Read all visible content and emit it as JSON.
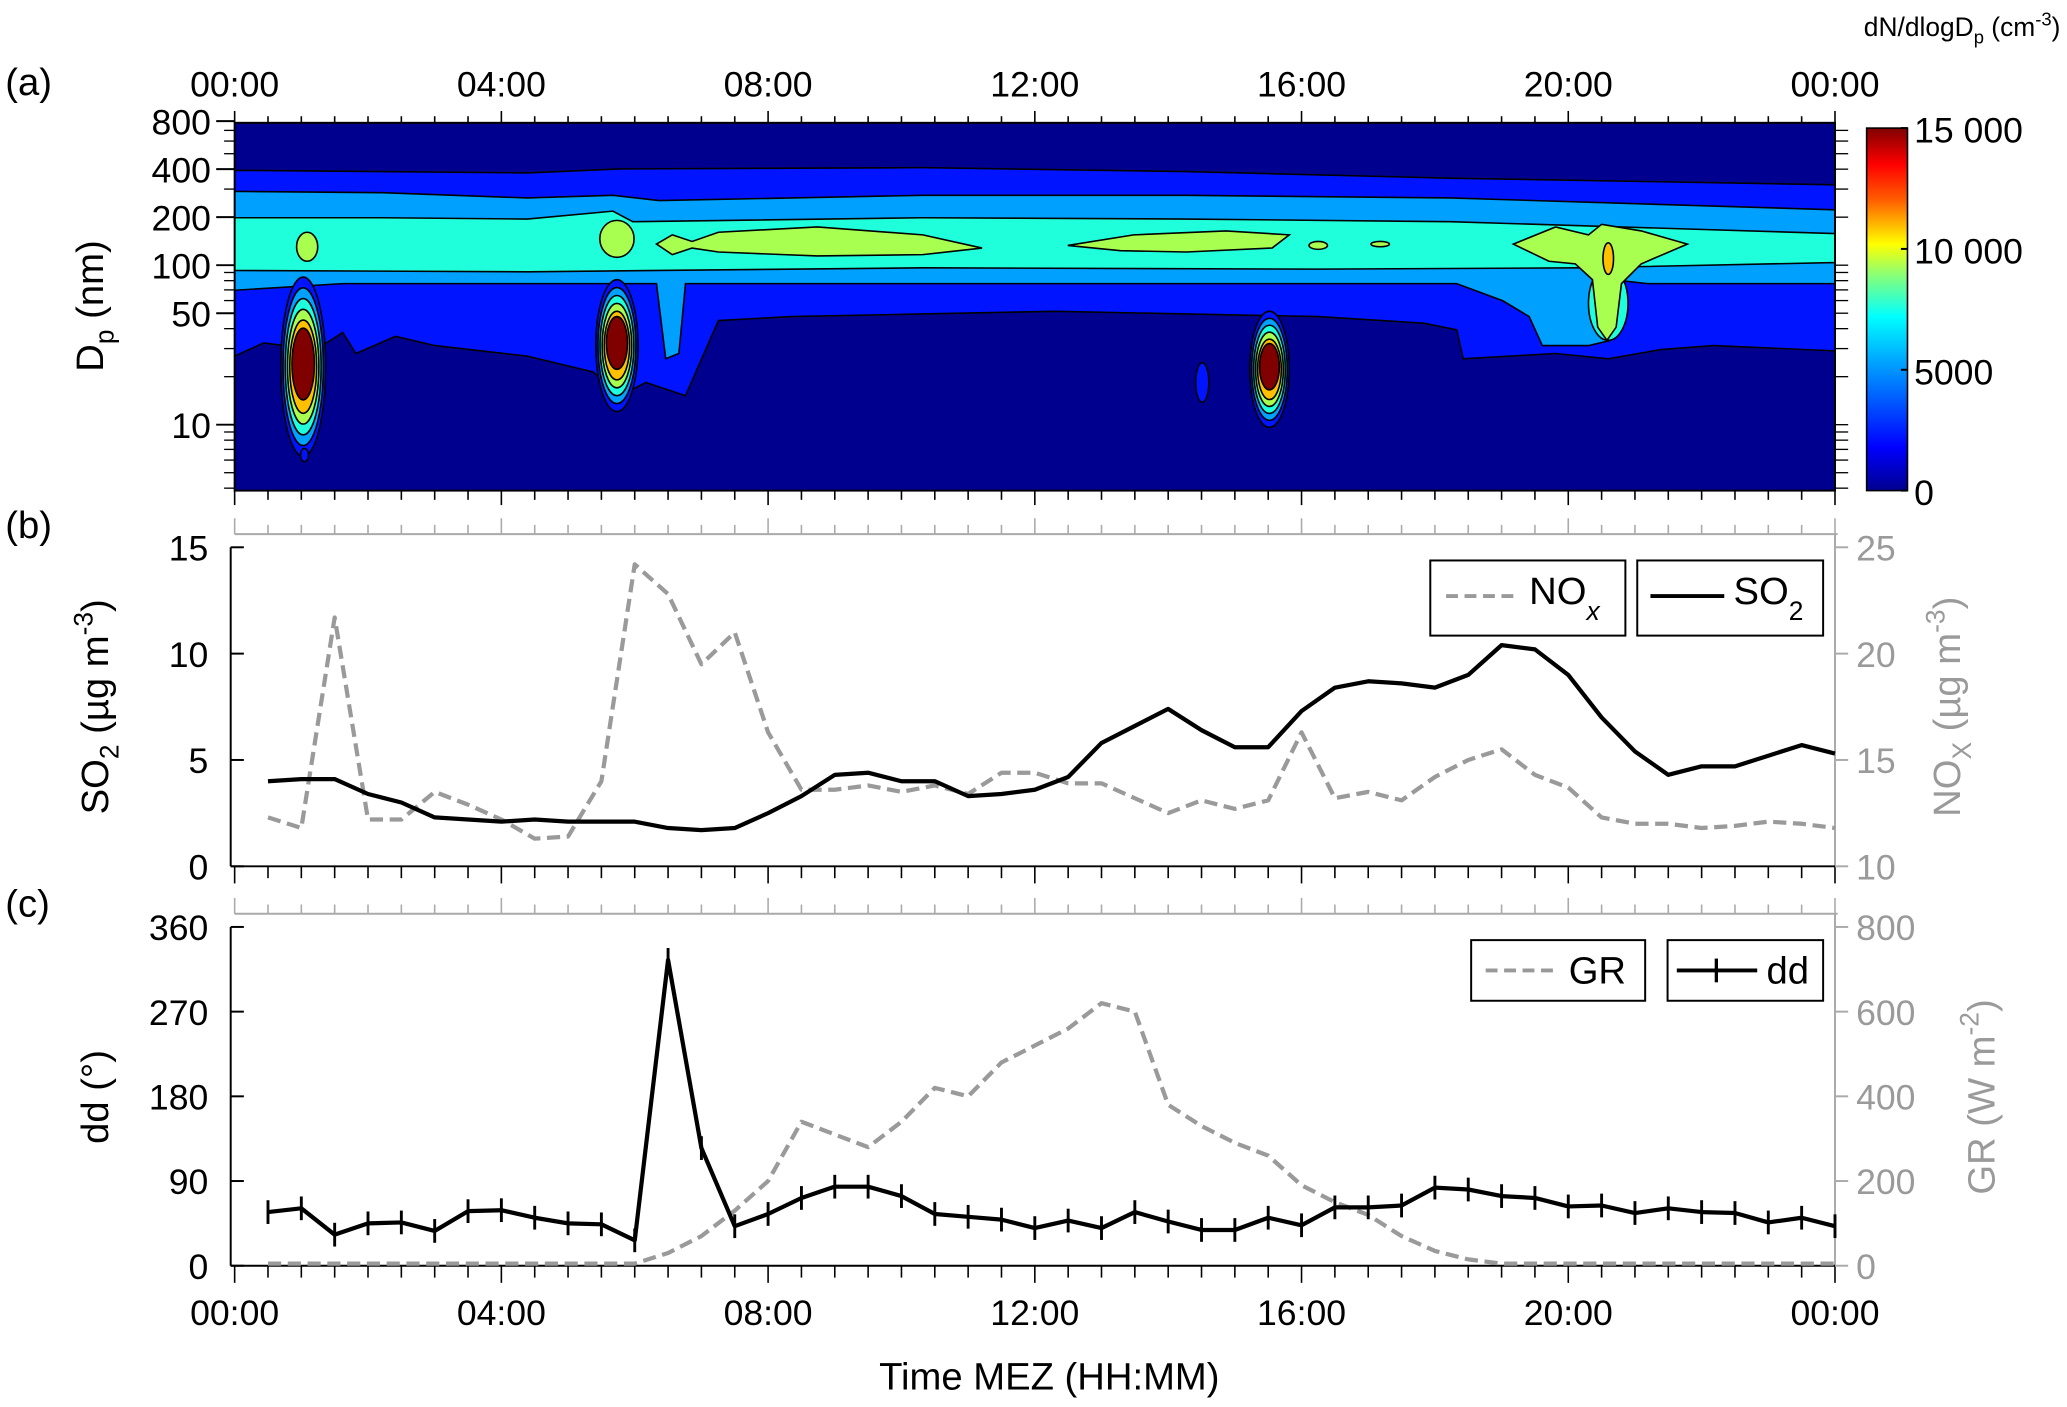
{
  "chart_data": [
    {
      "type": "heatmap",
      "panel_label": "(a)",
      "title": "",
      "xlabel": "Time MEZ (HH:MM)",
      "x_ticks": [
        "00:00",
        "04:00",
        "08:00",
        "12:00",
        "16:00",
        "20:00",
        "00:00"
      ],
      "ylabel": {
        "main": "D",
        "sub": "p",
        "rest": " (nm)"
      },
      "y_scale": "log",
      "y_ticks": [
        "800",
        "400",
        "200",
        "100",
        "50",
        "10"
      ],
      "colorbar": {
        "title": {
          "main": "dN/dlogD",
          "sub": "p",
          "rest": " (cm",
          "sup": "-3",
          "end": ")"
        },
        "ticks": [
          "15 000",
          "10 000",
          "5000",
          "0"
        ],
        "range": [
          0,
          15000
        ],
        "colors": [
          "#00008f",
          "#0014ff",
          "#00a0ff",
          "#20ffdc",
          "#a8ff50",
          "#ffc000",
          "#800000"
        ]
      },
      "events": [
        {
          "time_h": 1.0,
          "diameter_nm": "10-50",
          "peak": ">15000"
        },
        {
          "time_h": 5.75,
          "diameter_nm": "15-50",
          "peak": ">15000"
        },
        {
          "time_h": 15.5,
          "diameter_nm": "15-40",
          "peak": ">15000"
        },
        {
          "time_h": 20.7,
          "diameter_nm": "40-150",
          "peak": "~10000"
        }
      ]
    },
    {
      "type": "line",
      "panel_label": "(b)",
      "x_hours": [
        0.5,
        1,
        1.5,
        2,
        2.5,
        3,
        3.5,
        4,
        4.5,
        5,
        5.5,
        6,
        6.5,
        7,
        7.5,
        8,
        8.5,
        9,
        9.5,
        10,
        10.5,
        11,
        11.5,
        12,
        12.5,
        13,
        13.5,
        14,
        14.5,
        15,
        15.5,
        16,
        16.5,
        17,
        17.5,
        18,
        18.5,
        19,
        19.5,
        20,
        20.5,
        21,
        21.5,
        22,
        22.5,
        23,
        23.5,
        24
      ],
      "ylabel": {
        "main": "SO",
        "sub": "2",
        "rest": " (µg m",
        "sup": "-3",
        "end": ")"
      },
      "y2label": {
        "main": "NO",
        "sub": "X",
        "rest": " (µg m",
        "sup": "-3",
        "end": ")"
      },
      "ylim": [
        0,
        15
      ],
      "y_ticks": [
        "0",
        "5",
        "10",
        "15"
      ],
      "y2lim": [
        10,
        25
      ],
      "y2_ticks": [
        "10",
        "15",
        "20",
        "25"
      ],
      "legend": [
        {
          "main": "NO",
          "sub": "x"
        },
        {
          "main": "SO",
          "sub": "2"
        }
      ],
      "legend_position": "top-right",
      "series": [
        {
          "name": "SO2",
          "axis": "left",
          "style": "solid-black",
          "values": [
            4.0,
            4.1,
            4.1,
            3.4,
            3.0,
            2.3,
            2.2,
            2.1,
            2.2,
            2.1,
            2.1,
            2.1,
            1.8,
            1.7,
            1.8,
            2.5,
            3.3,
            4.3,
            4.4,
            4.0,
            4.0,
            3.3,
            3.4,
            3.6,
            4.2,
            5.8,
            6.6,
            7.4,
            6.4,
            5.6,
            5.6,
            7.3,
            8.4,
            8.7,
            8.6,
            8.4,
            9.0,
            10.4,
            10.2,
            9.0,
            7.0,
            5.4,
            4.3,
            4.7,
            4.7,
            5.2,
            5.7,
            5.3
          ]
        },
        {
          "name": "NOx",
          "axis": "right",
          "style": "dashed-gray",
          "values": [
            12.3,
            11.8,
            21.7,
            12.2,
            12.2,
            13.5,
            12.9,
            12.2,
            11.3,
            11.4,
            14.0,
            24.2,
            22.8,
            19.5,
            21.0,
            16.3,
            13.6,
            13.6,
            13.8,
            13.5,
            13.8,
            13.4,
            14.4,
            14.4,
            13.9,
            13.9,
            13.2,
            12.5,
            13.1,
            12.7,
            13.1,
            16.3,
            13.2,
            13.5,
            13.1,
            14.2,
            15.0,
            15.5,
            14.3,
            13.7,
            12.3,
            12.0,
            12.0,
            11.8,
            11.9,
            12.1,
            12.0,
            11.8
          ]
        }
      ]
    },
    {
      "type": "line",
      "panel_label": "(c)",
      "x_hours": [
        0.5,
        1,
        1.5,
        2,
        2.5,
        3,
        3.5,
        4,
        4.5,
        5,
        5.5,
        6,
        6.5,
        7,
        7.5,
        8,
        8.5,
        9,
        9.5,
        10,
        10.5,
        11,
        11.5,
        12,
        12.5,
        13,
        13.5,
        14,
        14.5,
        15,
        15.5,
        16,
        16.5,
        17,
        17.5,
        18,
        18.5,
        19,
        19.5,
        20,
        20.5,
        21,
        21.5,
        22,
        22.5,
        23,
        23.5,
        24
      ],
      "xlabel": "Time MEZ (HH:MM)",
      "x_ticks": [
        "00:00",
        "04:00",
        "08:00",
        "12:00",
        "16:00",
        "20:00",
        "00:00"
      ],
      "ylabel": {
        "main": "dd (°)"
      },
      "y2label": {
        "main": "GR (W m",
        "sup": "-2",
        "end": ")"
      },
      "ylim": [
        0,
        360
      ],
      "y_ticks": [
        "0",
        "90",
        "180",
        "270",
        "360"
      ],
      "y2lim": [
        0,
        800
      ],
      "y2_ticks": [
        "0",
        "200",
        "400",
        "600",
        "800"
      ],
      "legend": [
        {
          "main": "GR"
        },
        {
          "main": "dd"
        }
      ],
      "legend_position": "top-right",
      "series": [
        {
          "name": "dd",
          "axis": "left",
          "style": "solid-black-plus",
          "values": [
            57,
            61,
            33,
            45,
            46,
            37,
            58,
            59,
            51,
            45,
            44,
            27,
            325,
            125,
            42,
            55,
            72,
            84,
            84,
            74,
            55,
            52,
            49,
            40,
            48,
            40,
            57,
            47,
            38,
            38,
            51,
            43,
            62,
            62,
            64,
            83,
            81,
            74,
            72,
            63,
            64,
            56,
            61,
            57,
            56,
            46,
            51,
            42
          ]
        },
        {
          "name": "GR",
          "axis": "right",
          "style": "dashed-gray",
          "values": [
            5,
            5,
            5,
            5,
            5,
            5,
            5,
            5,
            5,
            5,
            5,
            5,
            30,
            70,
            130,
            200,
            340,
            310,
            280,
            340,
            420,
            400,
            480,
            520,
            560,
            620,
            600,
            380,
            330,
            290,
            260,
            190,
            150,
            120,
            70,
            35,
            15,
            5,
            5,
            5,
            5,
            5,
            5,
            5,
            5,
            5,
            5,
            5
          ]
        }
      ]
    }
  ]
}
